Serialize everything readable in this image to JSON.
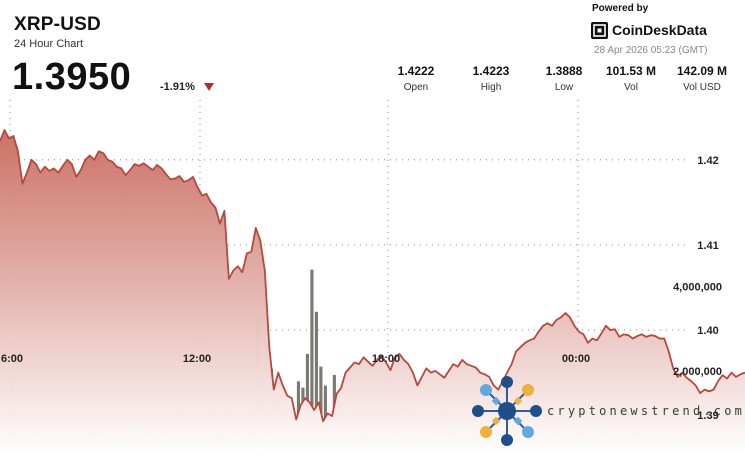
{
  "header": {
    "ticker": "XRP-USD",
    "subtitle": "24 Hour Chart",
    "price": "1.3950",
    "change": "-1.91%",
    "powered_by": "Powered by",
    "brand": "CoinDeskData",
    "timestamp": "28 Apr 2026 05:23 (GMT)",
    "stats": [
      {
        "value": "1.4222",
        "label": "Open"
      },
      {
        "value": "1.4223",
        "label": "High"
      },
      {
        "value": "1.3888",
        "label": "Low"
      },
      {
        "value": "101.53 M",
        "label": "Vol"
      },
      {
        "value": "142.09 M",
        "label": "Vol USD"
      }
    ]
  },
  "watermark": {
    "text": "cryptonewstrend.com",
    "icon": "network-hub-icon"
  },
  "colors": {
    "line": "#b8473d",
    "area_top": "#c96a5e",
    "area_bottom": "#ffffff",
    "volume": "#7a7a72",
    "down": "#b03028"
  },
  "chart_data": {
    "type": "area",
    "title": "",
    "xlabel": "",
    "ylabel": "",
    "ylim": [
      1.3845,
      1.4275
    ],
    "volume_ylim": [
      0,
      5200000
    ],
    "x_tick_labels": [
      "6:00",
      "12:00",
      "18:00",
      "00:00"
    ],
    "y_tick_values": [
      1.42,
      1.41,
      1.4,
      1.39
    ],
    "y_tick_labels": [
      "1.42",
      "1.41",
      "1.40",
      "1.39"
    ],
    "volume_tick_values": [
      2000000,
      4000000
    ],
    "volume_tick_labels": [
      "2,000,000",
      "4,000,000"
    ],
    "grid": true,
    "price": [
      1.4222,
      1.4235,
      1.4225,
      1.4228,
      1.421,
      1.4172,
      1.4185,
      1.42,
      1.4195,
      1.4185,
      1.4192,
      1.4187,
      1.419,
      1.4185,
      1.4193,
      1.42,
      1.4195,
      1.418,
      1.4188,
      1.42,
      1.4205,
      1.42,
      1.421,
      1.4208,
      1.42,
      1.4198,
      1.4192,
      1.419,
      1.4182,
      1.4188,
      1.4195,
      1.4193,
      1.4196,
      1.4192,
      1.4188,
      1.4194,
      1.419,
      1.4183,
      1.4177,
      1.4178,
      1.4181,
      1.4174,
      1.4176,
      1.418,
      1.4168,
      1.4158,
      1.416,
      1.415,
      1.4144,
      1.4125,
      1.414,
      1.406,
      1.407,
      1.4075,
      1.4068,
      1.409,
      1.4092,
      1.412,
      1.4105,
      1.407,
      1.398,
      1.393,
      1.395,
      1.3935,
      1.3923,
      1.392,
      1.3895,
      1.3912,
      1.392,
      1.3915,
      1.3906,
      1.3915,
      1.3893,
      1.3902,
      1.3899,
      1.3925,
      1.3932,
      1.395,
      1.3956,
      1.3962,
      1.396,
      1.3968,
      1.3963,
      1.3958,
      1.3965,
      1.397,
      1.3962,
      1.3953,
      1.3968,
      1.3972,
      1.3965,
      1.396,
      1.395,
      1.3935,
      1.3945,
      1.3955,
      1.395,
      1.3952,
      1.3948,
      1.3944,
      1.3952,
      1.396,
      1.3957,
      1.3965,
      1.396,
      1.3958,
      1.3956,
      1.395,
      1.3948,
      1.3945,
      1.3935,
      1.393,
      1.394,
      1.395,
      1.396,
      1.3975,
      1.398,
      1.3985,
      1.3988,
      1.399,
      1.3998,
      1.4005,
      1.4008,
      1.4005,
      1.4012,
      1.4015,
      1.402,
      1.4015,
      1.4005,
      1.3998,
      1.3995,
      1.3985,
      1.399,
      1.3988,
      1.3996,
      1.4005,
      1.4,
      1.4001,
      1.3992,
      1.3995,
      1.3994,
      1.399,
      1.3993,
      1.3995,
      1.3992,
      1.3994,
      1.3993,
      1.399,
      1.399,
      1.3975,
      1.3955,
      1.3945,
      1.395,
      1.3944,
      1.394,
      1.3935,
      1.3926,
      1.393,
      1.3928,
      1.393,
      1.394,
      1.3947,
      1.3943,
      1.395,
      1.3945,
      1.3948,
      1.395
    ],
    "volume": [
      400000,
      250000,
      1950000,
      200000,
      350000,
      500000,
      300000,
      600000,
      200000,
      450000,
      300000,
      300000,
      400000,
      400000,
      250000,
      200000,
      500000,
      300000,
      400000,
      200000,
      600000,
      700000,
      250000,
      300000,
      450000,
      300000,
      200000,
      350000,
      500000,
      300000,
      900000,
      1000000,
      300000,
      550000,
      350000,
      250000,
      600000,
      250000,
      500000,
      700000,
      1300000,
      200000,
      450000,
      600000,
      900000,
      300000,
      500000,
      1300000,
      600000,
      400000,
      1550000,
      900000,
      500000,
      600000,
      400000,
      1600000,
      450000,
      3250000,
      1950000,
      500000,
      2050000,
      1400000,
      1250000,
      700000,
      1100000,
      600000,
      1750000,
      1600000,
      2400000,
      4400000,
      3400000,
      2100000,
      1650000,
      800000,
      1900000,
      1250000,
      800000,
      950000,
      700000,
      1100000,
      400000,
      1600000,
      750000,
      1300000,
      1100000,
      650000,
      1900000,
      1600000,
      500000,
      600000,
      1350000,
      600000,
      1700000,
      900000,
      400000,
      500000,
      600000,
      300000,
      800000,
      1450000,
      550000,
      350000,
      300000,
      900000,
      700000,
      600000,
      400000,
      500000,
      700000,
      300000,
      200000,
      500000,
      300000,
      700000,
      300000,
      500000,
      400000,
      250000,
      600000,
      250000,
      750000,
      300000,
      300000,
      300000,
      550000,
      400000,
      200000,
      400000,
      250000,
      600000,
      250000,
      300000,
      450000,
      200000,
      600000,
      250000,
      300000,
      250000,
      200000,
      400000,
      250000,
      800000,
      300000,
      200000,
      400000,
      700000,
      300000,
      200000,
      300000,
      250000,
      450000,
      300000,
      200000,
      300000,
      250000,
      200000,
      300000,
      250000,
      300000,
      350000,
      400000,
      300000,
      200000,
      250000,
      300000,
      200000
    ]
  }
}
